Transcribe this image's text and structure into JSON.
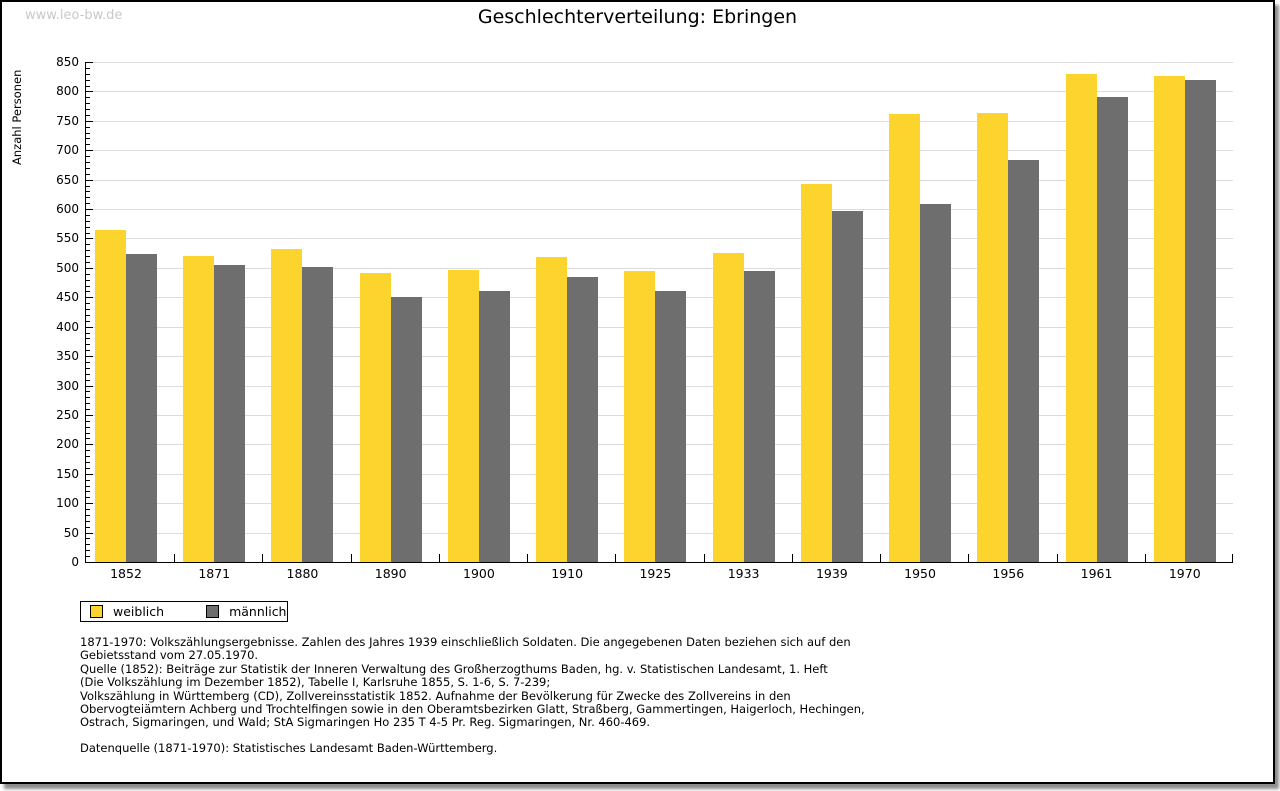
{
  "watermark": "www.leo-bw.de",
  "title": "Geschlechterverteilung: Ebringen",
  "colors": {
    "female_bar": "#fcd42d",
    "male_bar": "#6e6e6e",
    "gridline": "#dcdcdc",
    "watermark": "#c9c9c9",
    "frame_border": "#000000",
    "axis": "#000000"
  },
  "legend": {
    "items": [
      {
        "label": "weiblich",
        "color": "#fcd42d"
      },
      {
        "label": "männlich",
        "color": "#6e6e6e"
      }
    ]
  },
  "chart_data": {
    "type": "bar",
    "title": "Geschlechterverteilung: Ebringen",
    "xlabel": "",
    "ylabel": "Anzahl Personen",
    "ylim": [
      0,
      850
    ],
    "ytick_step": 50,
    "yminor_step": 10,
    "grid": true,
    "legend_position": "bottom-left",
    "categories": [
      "1852",
      "1871",
      "1880",
      "1890",
      "1900",
      "1910",
      "1925",
      "1933",
      "1939",
      "1950",
      "1956",
      "1961",
      "1970"
    ],
    "series": [
      {
        "name": "weiblich",
        "color": "#fcd42d",
        "values": [
          565,
          521,
          532,
          491,
          497,
          518,
          494,
          525,
          643,
          762,
          764,
          829,
          826
        ]
      },
      {
        "name": "männlich",
        "color": "#6e6e6e",
        "values": [
          523,
          505,
          501,
          451,
          460,
          484,
          461,
          494,
          597,
          608,
          684,
          791,
          820
        ]
      }
    ]
  },
  "footnotes": {
    "block": [
      "1871-1970: Volkszählungsergebnisse. Zahlen des Jahres 1939 einschließlich Soldaten. Die angegebenen Daten beziehen sich auf den",
      "Gebietsstand vom 27.05.1970.",
      "Quelle (1852): Beiträge zur Statistik der Inneren Verwaltung des Großherzogthums Baden, hg. v. Statistischen Landesamt, 1. Heft",
      "(Die Volkszählung im Dezember 1852), Tabelle I, Karlsruhe 1855, S. 1-6, S. 7-239;",
      "Volkszählung in Württemberg (CD), Zollvereinsstatistik 1852. Aufnahme der Bevölkerung für Zwecke des Zollvereins in den",
      "Obervogteiämtern Achberg und Trochtelfingen sowie in den Oberamtsbezirken Glatt, Straßberg, Gammertingen, Haigerloch, Hechingen,",
      "Ostrach, Sigmaringen, und Wald; StA Sigmaringen Ho 235 T 4-5 Pr. Reg. Sigmaringen, Nr. 460-469."
    ],
    "datasource": "Datenquelle (1871-1970): Statistisches Landesamt Baden-Württemberg."
  }
}
